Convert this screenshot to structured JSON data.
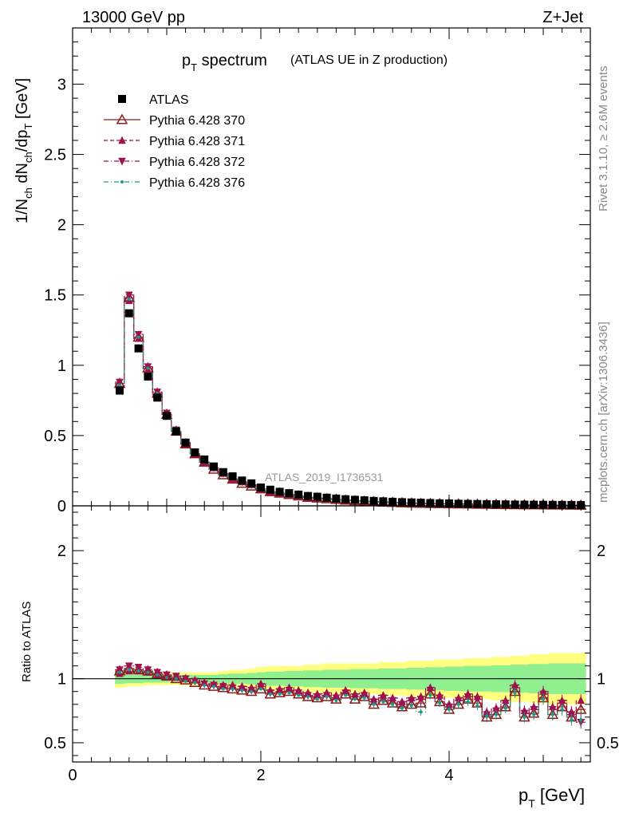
{
  "header": {
    "energy_label": "13000 GeV pp",
    "process_label": "Z+Jet"
  },
  "side": {
    "rivet_label": "Rivet 3.1.10, ≥ 2.6M events",
    "mcplots_label": "mcplots.cern.ch [arXiv:1306.3436]"
  },
  "main_plot": {
    "title_main": "p",
    "title_sub": "T",
    "title_rest": " spectrum",
    "title_note": "(ATLAS UE in Z production)",
    "watermark": "ATLAS_2019_I1736531",
    "ylabel": "1/N_ch dN_ch/dp_T [GeV]",
    "ytick_labels": [
      "0",
      "0.5",
      "1",
      "1.5",
      "2",
      "2.5",
      "3"
    ],
    "ylim": [
      0,
      3.4
    ]
  },
  "ratio_plot": {
    "ylabel": "Ratio to ATLAS",
    "ytick_labels": [
      "0.5",
      "1",
      "2"
    ],
    "ylim": [
      0.35,
      2.35
    ]
  },
  "x_axis": {
    "label": "p_T [GeV]",
    "tick_labels": [
      "0",
      "2",
      "4"
    ],
    "xlim": [
      0,
      5.5
    ]
  },
  "legend": [
    {
      "name": "ATLAS",
      "marker": "square",
      "color": "#000000",
      "line": "none"
    },
    {
      "name": "Pythia 6.428 370",
      "marker": "triangle-open",
      "color": "#8b1a1a",
      "line": "solid"
    },
    {
      "name": "Pythia 6.428 371",
      "marker": "triangle-up",
      "color": "#a0104e",
      "line": "dashed"
    },
    {
      "name": "Pythia 6.428 372",
      "marker": "triangle-down",
      "color": "#a0104e",
      "line": "dashdot"
    },
    {
      "name": "Pythia 6.428 376",
      "marker": "dot",
      "color": "#1a9a8a",
      "line": "dashdot"
    }
  ],
  "colors": {
    "band_outer": "#ffff80",
    "band_inner": "#90f090"
  },
  "chart_data": [
    {
      "type": "scatter",
      "x": [
        0.5,
        0.6,
        0.7,
        0.8,
        0.9,
        1.0,
        1.1,
        1.2,
        1.3,
        1.4,
        1.5,
        1.6,
        1.7,
        1.8,
        1.9,
        2.0,
        2.1,
        2.2,
        2.3,
        2.4,
        2.5,
        2.6,
        2.7,
        2.8,
        2.9,
        3.0,
        3.1,
        3.2,
        3.3,
        3.4,
        3.5,
        3.6,
        3.7,
        3.8,
        3.9,
        4.0,
        4.1,
        4.2,
        4.3,
        4.4,
        4.5,
        4.6,
        4.7,
        4.8,
        4.9,
        5.0,
        5.1,
        5.2,
        5.3,
        5.4
      ],
      "series": [
        {
          "name": "ATLAS",
          "values": [
            0.82,
            1.37,
            1.12,
            0.92,
            0.77,
            0.64,
            0.53,
            0.45,
            0.38,
            0.33,
            0.28,
            0.24,
            0.21,
            0.18,
            0.16,
            0.13,
            0.115,
            0.1,
            0.09,
            0.08,
            0.07,
            0.065,
            0.058,
            0.052,
            0.047,
            0.043,
            0.039,
            0.035,
            0.032,
            0.029,
            0.026,
            0.024,
            0.022,
            0.02,
            0.018,
            0.017,
            0.015,
            0.014,
            0.013,
            0.012,
            0.011,
            0.01,
            0.009,
            0.0085,
            0.008,
            0.0075,
            0.007,
            0.0065,
            0.006,
            0.0055
          ]
        },
        {
          "name": "Pythia 6.428 370",
          "values": [
            0.87,
            1.48,
            1.2,
            0.98,
            0.8,
            0.65,
            0.53,
            0.44,
            0.37,
            0.31,
            0.26,
            0.22,
            0.19,
            0.16,
            0.14,
            0.12,
            0.1,
            0.09,
            0.08,
            0.07,
            0.06,
            0.055,
            0.05,
            0.045,
            0.04,
            0.036,
            0.032,
            0.029,
            0.026,
            0.024,
            0.021,
            0.019,
            0.017,
            0.016,
            0.015,
            0.014,
            0.013,
            0.012,
            0.011,
            0.01,
            0.009,
            0.008,
            0.0075,
            0.007,
            0.0065,
            0.006,
            0.0055,
            0.005,
            0.0045,
            0.004
          ]
        },
        {
          "name": "Pythia 6.428 371",
          "values": [
            0.85,
            1.46,
            1.19,
            0.97,
            0.79,
            0.65,
            0.53,
            0.44,
            0.37,
            0.31,
            0.27,
            0.23,
            0.19,
            0.17,
            0.15,
            0.12,
            0.1,
            0.09,
            0.08,
            0.07,
            0.06,
            0.056,
            0.051,
            0.046,
            0.041,
            0.037,
            0.033,
            0.03,
            0.027,
            0.024,
            0.021,
            0.019,
            0.018,
            0.016,
            0.015,
            0.014,
            0.013,
            0.012,
            0.011,
            0.01,
            0.009,
            0.008,
            0.0075,
            0.007,
            0.0065,
            0.006,
            0.0055,
            0.005,
            0.0045,
            0.0045
          ]
        },
        {
          "name": "Pythia 6.428 372",
          "values": [
            0.88,
            1.5,
            1.22,
            0.99,
            0.81,
            0.66,
            0.54,
            0.45,
            0.37,
            0.31,
            0.27,
            0.23,
            0.19,
            0.17,
            0.15,
            0.12,
            0.1,
            0.09,
            0.08,
            0.07,
            0.06,
            0.056,
            0.051,
            0.046,
            0.041,
            0.037,
            0.033,
            0.03,
            0.027,
            0.024,
            0.021,
            0.019,
            0.018,
            0.016,
            0.015,
            0.014,
            0.013,
            0.012,
            0.011,
            0.01,
            0.009,
            0.008,
            0.0075,
            0.007,
            0.0065,
            0.006,
            0.0055,
            0.005,
            0.0045,
            0.004
          ]
        },
        {
          "name": "Pythia 6.428 376",
          "values": [
            0.86,
            1.47,
            1.2,
            0.98,
            0.8,
            0.65,
            0.53,
            0.44,
            0.37,
            0.31,
            0.26,
            0.22,
            0.19,
            0.16,
            0.14,
            0.12,
            0.1,
            0.09,
            0.08,
            0.07,
            0.06,
            0.055,
            0.05,
            0.045,
            0.04,
            0.036,
            0.032,
            0.029,
            0.026,
            0.023,
            0.021,
            0.019,
            0.017,
            0.016,
            0.015,
            0.014,
            0.013,
            0.012,
            0.011,
            0.01,
            0.009,
            0.008,
            0.0075,
            0.007,
            0.0065,
            0.006,
            0.0055,
            0.005,
            0.0045,
            0.004
          ]
        }
      ]
    },
    {
      "type": "scatter",
      "x": [
        0.5,
        0.6,
        0.7,
        0.8,
        0.9,
        1.0,
        1.1,
        1.2,
        1.3,
        1.4,
        1.5,
        1.6,
        1.7,
        1.8,
        1.9,
        2.0,
        2.1,
        2.2,
        2.3,
        2.4,
        2.5,
        2.6,
        2.7,
        2.8,
        2.9,
        3.0,
        3.1,
        3.2,
        3.3,
        3.4,
        3.5,
        3.6,
        3.7,
        3.8,
        3.9,
        4.0,
        4.1,
        4.2,
        4.3,
        4.4,
        4.5,
        4.6,
        4.7,
        4.8,
        4.9,
        5.0,
        5.1,
        5.2,
        5.3,
        5.4
      ],
      "bands": {
        "outer_half_width": [
          0.07,
          0.06,
          0.06,
          0.05,
          0.05,
          0.05,
          0.05,
          0.05,
          0.05,
          0.05,
          0.05,
          0.06,
          0.07,
          0.07,
          0.08,
          0.09,
          0.1,
          0.1,
          0.1,
          0.1,
          0.11,
          0.11,
          0.12,
          0.12,
          0.12,
          0.12,
          0.12,
          0.12,
          0.13,
          0.13,
          0.13,
          0.14,
          0.14,
          0.14,
          0.15,
          0.15,
          0.15,
          0.16,
          0.16,
          0.16,
          0.17,
          0.17,
          0.18,
          0.18,
          0.19,
          0.19,
          0.2,
          0.2,
          0.2,
          0.2
        ],
        "inner_half_width": [
          0.04,
          0.035,
          0.035,
          0.03,
          0.03,
          0.03,
          0.03,
          0.03,
          0.03,
          0.03,
          0.03,
          0.035,
          0.04,
          0.04,
          0.045,
          0.05,
          0.055,
          0.055,
          0.06,
          0.06,
          0.065,
          0.065,
          0.07,
          0.07,
          0.07,
          0.075,
          0.075,
          0.075,
          0.08,
          0.08,
          0.08,
          0.085,
          0.085,
          0.09,
          0.09,
          0.095,
          0.095,
          0.1,
          0.1,
          0.1,
          0.105,
          0.105,
          0.11,
          0.11,
          0.115,
          0.115,
          0.12,
          0.12,
          0.12,
          0.12
        ]
      },
      "series": [
        {
          "name": "Pythia 6.428 370",
          "values": [
            1.06,
            1.08,
            1.07,
            1.06,
            1.04,
            1.02,
            1.0,
            0.99,
            0.97,
            0.95,
            0.94,
            0.93,
            0.92,
            0.91,
            0.9,
            0.92,
            0.88,
            0.89,
            0.9,
            0.88,
            0.86,
            0.85,
            0.86,
            0.84,
            0.88,
            0.84,
            0.86,
            0.8,
            0.83,
            0.81,
            0.78,
            0.8,
            0.81,
            0.88,
            0.82,
            0.76,
            0.8,
            0.84,
            0.81,
            0.7,
            0.72,
            0.78,
            0.9,
            0.7,
            0.73,
            0.85,
            0.72,
            0.78,
            0.7,
            0.76
          ]
        },
        {
          "name": "Pythia 6.428 371",
          "values": [
            1.04,
            1.06,
            1.06,
            1.05,
            1.03,
            1.02,
            1.01,
            1.0,
            0.99,
            0.97,
            0.96,
            0.95,
            0.95,
            0.94,
            0.93,
            0.96,
            0.91,
            0.92,
            0.93,
            0.91,
            0.89,
            0.88,
            0.89,
            0.87,
            0.91,
            0.88,
            0.89,
            0.84,
            0.87,
            0.85,
            0.82,
            0.85,
            0.86,
            0.93,
            0.87,
            0.8,
            0.85,
            0.88,
            0.86,
            0.74,
            0.77,
            0.83,
            0.95,
            0.75,
            0.78,
            0.9,
            0.78,
            0.83,
            0.74,
            0.83
          ]
        },
        {
          "name": "Pythia 6.428 372",
          "values": [
            1.07,
            1.1,
            1.09,
            1.07,
            1.05,
            1.03,
            1.02,
            1.0,
            0.98,
            0.96,
            0.95,
            0.94,
            0.93,
            0.92,
            0.91,
            0.94,
            0.89,
            0.9,
            0.91,
            0.89,
            0.87,
            0.86,
            0.87,
            0.85,
            0.89,
            0.86,
            0.87,
            0.82,
            0.85,
            0.83,
            0.8,
            0.83,
            0.84,
            0.91,
            0.85,
            0.78,
            0.83,
            0.86,
            0.84,
            0.72,
            0.75,
            0.81,
            0.93,
            0.73,
            0.76,
            0.88,
            0.76,
            0.81,
            0.72,
            0.66
          ]
        },
        {
          "name": "Pythia 6.428 376",
          "values": [
            1.05,
            1.07,
            1.06,
            1.05,
            1.03,
            1.01,
            1.0,
            0.98,
            0.97,
            0.95,
            0.94,
            0.92,
            0.92,
            0.91,
            0.9,
            0.92,
            0.88,
            0.88,
            0.89,
            0.87,
            0.86,
            0.84,
            0.86,
            0.83,
            0.87,
            0.84,
            0.85,
            0.8,
            0.82,
            0.8,
            0.77,
            0.79,
            0.74,
            0.87,
            0.81,
            0.76,
            0.8,
            0.82,
            0.79,
            0.71,
            0.72,
            0.77,
            0.89,
            0.7,
            0.72,
            0.84,
            0.72,
            0.76,
            0.68,
            0.68
          ]
        }
      ]
    }
  ]
}
